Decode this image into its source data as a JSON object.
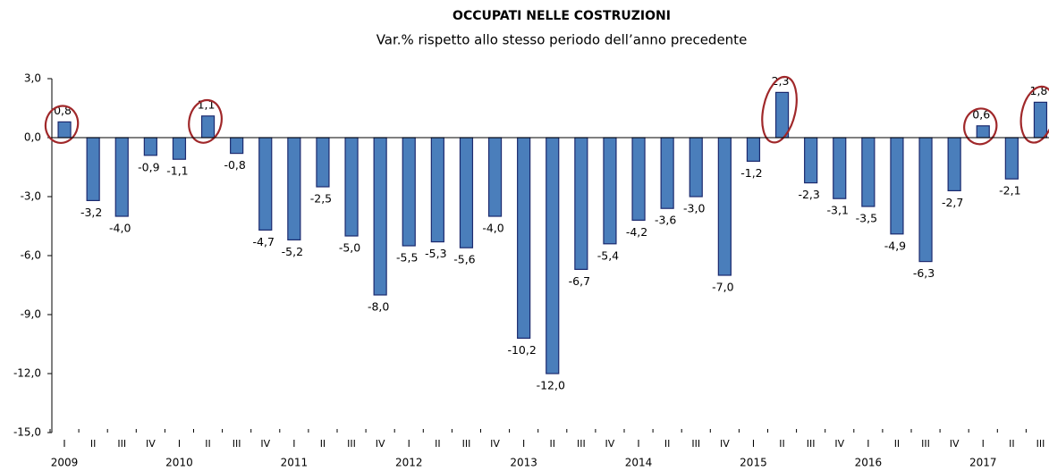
{
  "chart_data": {
    "type": "bar",
    "title": "OCCUPATI NELLE COSTRUZIONI",
    "subtitle": "Var.%  rispetto allo stesso periodo dell’anno precedente",
    "categories": [
      "I",
      "II",
      "III",
      "IV",
      "I",
      "II",
      "III",
      "IV",
      "I",
      "II",
      "III",
      "IV",
      "I",
      "II",
      "III",
      "IV",
      "I",
      "II",
      "III",
      "IV",
      "I",
      "II",
      "III",
      "IV",
      "I",
      "II",
      "III",
      "IV",
      "I",
      "II",
      "III",
      "IV",
      "I",
      "II",
      "III"
    ],
    "year_labels": [
      "2009",
      "2010",
      "2011",
      "2012",
      "2013",
      "2014",
      "2015",
      "2016",
      "2017"
    ],
    "values": [
      0.8,
      -3.2,
      -4.0,
      -0.9,
      -1.1,
      1.1,
      -0.8,
      -4.7,
      -5.2,
      -2.5,
      -5.0,
      -8.0,
      -5.5,
      -5.3,
      -5.6,
      -4.0,
      -10.2,
      -12.0,
      -6.7,
      -5.4,
      -4.2,
      -3.6,
      -3.0,
      -7.0,
      -1.2,
      2.3,
      -2.3,
      -3.1,
      -3.5,
      -4.9,
      -6.3,
      -2.7,
      0.6,
      -2.1,
      1.8
    ],
    "value_labels": [
      "0,8",
      "-3,2",
      "-4,0",
      "-0,9",
      "-1,1",
      "1,1",
      "-0,8",
      "-4,7",
      "-5,2",
      "-2,5",
      "-5,0",
      "-8,0",
      "-5,5",
      "-5,3",
      "-5,6",
      "-4,0",
      "-10,2",
      "-12,0",
      "-6,7",
      "-5,4",
      "-4,2",
      "-3,6",
      "-3,0",
      "-7,0",
      "-1,2",
      "2,3",
      "-2,3",
      "-3,1",
      "-3,5",
      "-4,9",
      "-6,3",
      "-2,7",
      "0,6",
      "-2,1",
      "1,8"
    ],
    "color": "#4a7ebb",
    "ylim": [
      -15,
      3
    ],
    "yticks": [
      {
        "value": -15,
        "label": "-15,0"
      },
      {
        "value": -12,
        "label": "-12,0"
      },
      {
        "value": -9,
        "label": "-9,0"
      },
      {
        "value": -6,
        "label": "-6,0"
      },
      {
        "value": -3,
        "label": "-3,0"
      },
      {
        "value": 0,
        "label": "0,0"
      },
      {
        "value": 3,
        "label": "3,0"
      }
    ],
    "highlight_positive": true
  }
}
